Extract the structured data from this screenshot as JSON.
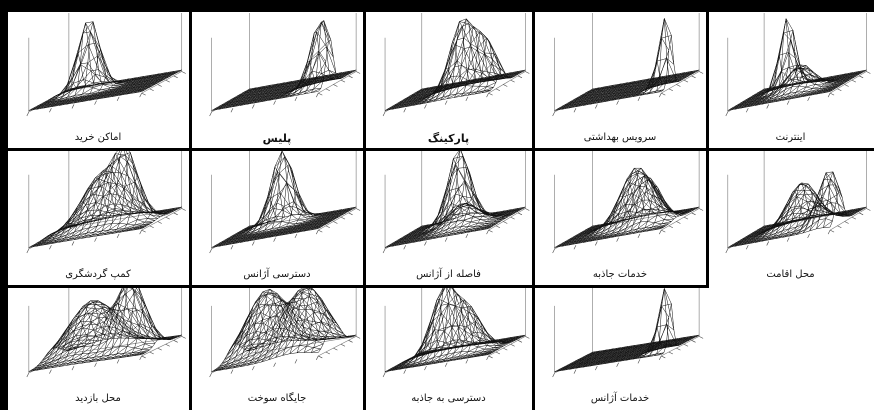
{
  "figure": {
    "panels": [
      {
        "caption": "اماکن خرید",
        "bold": false,
        "peaks": [
          {
            "u": 0.3,
            "v": 0.65,
            "h": 1.0,
            "s": 0.09
          }
        ]
      },
      {
        "caption": "پلیس",
        "bold": true,
        "peaks": [
          {
            "u": 0.92,
            "v": 0.3,
            "h": 0.95,
            "s": 0.09
          }
        ]
      },
      {
        "caption": "پارکینگ",
        "bold": true,
        "peaks": [
          {
            "u": 0.62,
            "v": 0.35,
            "h": 0.95,
            "s": 0.11
          },
          {
            "u": 0.85,
            "v": 0.35,
            "h": 0.6,
            "s": 0.1
          }
        ]
      },
      {
        "caption": "سرویس بهداشتی",
        "bold": false,
        "peaks": [
          {
            "u": 0.95,
            "v": 0.25,
            "h": 1.0,
            "s": 0.06
          }
        ]
      },
      {
        "caption": "اینترنت",
        "bold": false,
        "peaks": [
          {
            "u": 0.35,
            "v": 0.65,
            "h": 1.0,
            "s": 0.07
          },
          {
            "u": 0.55,
            "v": 0.45,
            "h": 0.35,
            "s": 0.12
          }
        ]
      },
      {
        "caption": "کمپ گردشگری",
        "bold": false,
        "peaks": [
          {
            "u": 0.45,
            "v": 0.55,
            "h": 0.7,
            "s": 0.17
          },
          {
            "u": 0.7,
            "v": 0.45,
            "h": 0.85,
            "s": 0.11
          }
        ]
      },
      {
        "caption": "دسترسی آژانس",
        "bold": false,
        "peaks": [
          {
            "u": 0.4,
            "v": 0.75,
            "h": 1.0,
            "s": 0.1
          }
        ]
      },
      {
        "caption": "فاصله از آژانس",
        "bold": false,
        "peaks": [
          {
            "u": 0.45,
            "v": 0.75,
            "h": 1.0,
            "s": 0.1
          },
          {
            "u": 0.6,
            "v": 0.45,
            "h": 0.3,
            "s": 0.14
          }
        ]
      },
      {
        "caption": "خدمات جاذبه",
        "bold": false,
        "peaks": [
          {
            "u": 0.55,
            "v": 0.6,
            "h": 0.75,
            "s": 0.14
          },
          {
            "u": 0.75,
            "v": 0.4,
            "h": 0.5,
            "s": 0.11
          }
        ]
      },
      {
        "caption": "محل اقامت",
        "bold": false,
        "peaks": [
          {
            "u": 0.55,
            "v": 0.5,
            "h": 0.6,
            "s": 0.14
          },
          {
            "u": 0.9,
            "v": 0.25,
            "h": 0.75,
            "s": 0.1
          }
        ]
      },
      {
        "caption": "محل بازدید",
        "bold": false,
        "peaks": [
          {
            "u": 0.35,
            "v": 0.6,
            "h": 0.8,
            "s": 0.2
          },
          {
            "u": 0.75,
            "v": 0.45,
            "h": 1.0,
            "s": 0.12
          }
        ]
      },
      {
        "caption": "جایگاه سوخت",
        "bold": false,
        "peaks": [
          {
            "u": 0.3,
            "v": 0.6,
            "h": 0.95,
            "s": 0.18
          },
          {
            "u": 0.75,
            "v": 0.4,
            "h": 0.95,
            "s": 0.18
          }
        ]
      },
      {
        "caption": "دسترسی به جاذبه",
        "bold": false,
        "peaks": [
          {
            "u": 0.4,
            "v": 0.5,
            "h": 1.0,
            "s": 0.12
          },
          {
            "u": 0.65,
            "v": 0.45,
            "h": 0.6,
            "s": 0.12
          }
        ]
      },
      {
        "caption": "خدمات آژانس",
        "bold": false,
        "peaks": [
          {
            "u": 0.95,
            "v": 0.25,
            "h": 1.0,
            "s": 0.06
          }
        ]
      }
    ]
  }
}
